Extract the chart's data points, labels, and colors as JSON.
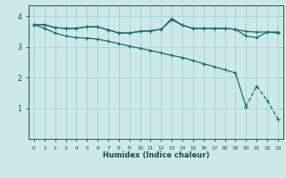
{
  "xlabel": "Humidex (Indice chaleur)",
  "bg_color": "#cce8e8",
  "grid_color": "#aad4d4",
  "line_color": "#1a6b6b",
  "xlim": [
    -0.5,
    23.5
  ],
  "ylim": [
    0,
    4.35
  ],
  "yticks": [
    1,
    2,
    3,
    4
  ],
  "xticks": [
    0,
    1,
    2,
    3,
    4,
    5,
    6,
    7,
    8,
    9,
    10,
    11,
    12,
    13,
    14,
    15,
    16,
    17,
    18,
    19,
    20,
    21,
    22,
    23
  ],
  "series1_x": [
    0,
    1,
    2,
    3,
    4,
    5,
    6,
    7,
    8,
    9,
    10,
    11,
    12,
    13,
    14,
    15,
    16,
    17,
    18,
    19,
    20,
    21,
    22,
    23
  ],
  "series1_y": [
    3.72,
    3.72,
    3.62,
    3.6,
    3.6,
    3.65,
    3.65,
    3.55,
    3.45,
    3.45,
    3.5,
    3.52,
    3.57,
    3.92,
    3.7,
    3.6,
    3.6,
    3.6,
    3.6,
    3.57,
    3.5,
    3.48,
    3.48,
    3.48
  ],
  "series2_x": [
    0,
    1,
    2,
    3,
    4,
    5,
    6,
    7,
    8,
    9,
    10,
    11,
    12,
    13,
    14,
    15,
    16,
    17,
    18,
    19,
    20,
    21,
    22,
    23
  ],
  "series2_y": [
    3.72,
    3.72,
    3.62,
    3.6,
    3.6,
    3.65,
    3.65,
    3.55,
    3.45,
    3.45,
    3.5,
    3.52,
    3.57,
    3.88,
    3.7,
    3.6,
    3.6,
    3.6,
    3.6,
    3.57,
    3.35,
    3.3,
    3.48,
    3.45
  ],
  "series3_x": [
    0,
    1,
    2,
    3,
    4,
    5,
    6,
    7,
    8,
    9,
    10,
    11,
    12,
    13,
    14,
    15,
    16,
    17,
    18,
    19,
    20,
    21,
    22,
    23
  ],
  "series3_y": [
    3.72,
    3.6,
    3.45,
    3.35,
    3.3,
    3.28,
    3.25,
    3.18,
    3.1,
    3.02,
    2.95,
    2.88,
    2.8,
    2.72,
    2.65,
    2.55,
    2.45,
    2.35,
    2.25,
    2.15,
    1.05,
    1.72,
    1.25,
    0.65
  ]
}
